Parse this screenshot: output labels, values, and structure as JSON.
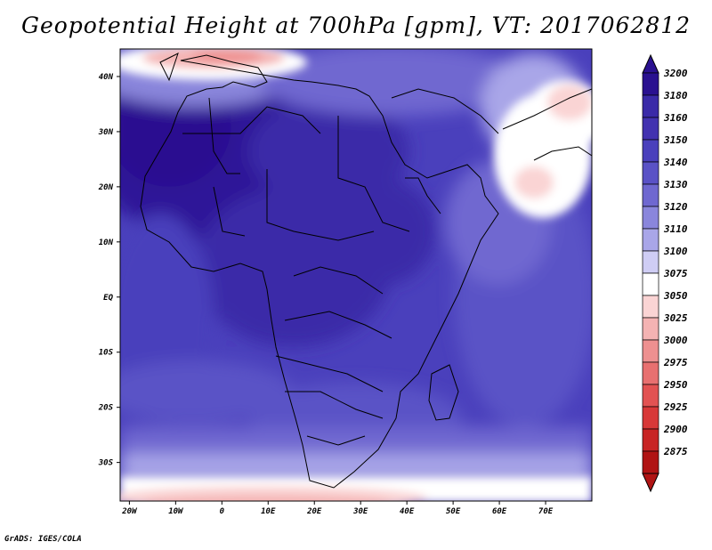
{
  "title": "Geopotential Height at 700hPa [gpm], VT: 2017062812",
  "credit": "GrADS: IGES/COLA",
  "map": {
    "lat_labels": [
      "40N",
      "30N",
      "20N",
      "10N",
      "EQ",
      "10S",
      "20S",
      "30S"
    ],
    "lon_labels": [
      "20W",
      "10W",
      "0",
      "10E",
      "20E",
      "30E",
      "40E",
      "50E",
      "60E",
      "70E"
    ],
    "lat_values": [
      40,
      30,
      20,
      10,
      0,
      -10,
      -20,
      -30
    ],
    "lon_values": [
      -20,
      -10,
      0,
      10,
      20,
      30,
      40,
      50,
      60,
      70
    ],
    "extent": {
      "lon_min": -22,
      "lon_max": 80,
      "lat_min": -37,
      "lat_max": 45
    }
  },
  "colorbar": {
    "levels": [
      "3200",
      "3180",
      "3160",
      "3150",
      "3140",
      "3130",
      "3120",
      "3110",
      "3100",
      "3075",
      "3050",
      "3025",
      "3000",
      "2975",
      "2950",
      "2925",
      "2900",
      "2875"
    ],
    "colors_top_to_bottom": [
      "#2a1190",
      "#3a2aa8",
      "#4232b0",
      "#4a40bc",
      "#5a52c6",
      "#6f68d0",
      "#8a86dc",
      "#a9a6e8",
      "#cfcdf4",
      "#ffffff",
      "#fad4d4",
      "#f4b3b3",
      "#ee9090",
      "#e87070",
      "#e25252",
      "#d83838",
      "#c82424",
      "#b01414"
    ]
  },
  "colors": {
    "deep_blue": "#2a1190",
    "mid_blue": "#4a40bc",
    "light_blue": "#8a86dc",
    "white": "#ffffff",
    "pink": "#f4b3b3",
    "red": "#e25252"
  }
}
